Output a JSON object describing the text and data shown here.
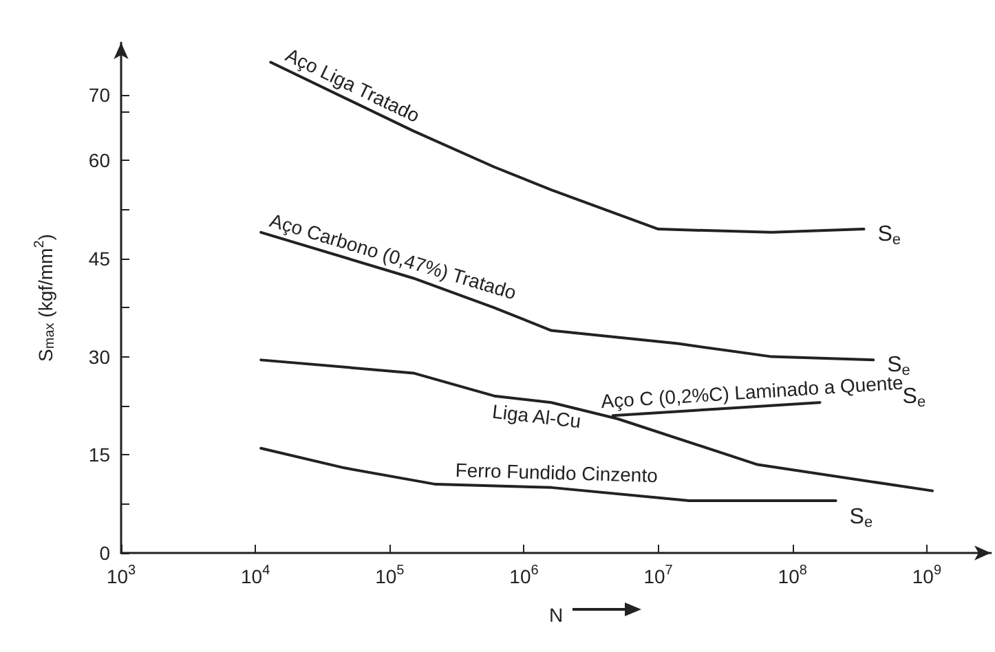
{
  "chart_data": {
    "type": "line",
    "xlabel": "N",
    "ylabel": "S$_{max}$ (kgf/mm$^{2}$)",
    "log": "x",
    "xlim": [
      1000,
      3000000000
    ],
    "ylim": [
      0,
      78
    ],
    "xticks": [
      {
        "value": 1000,
        "label": "10$^{3}$"
      },
      {
        "value": 10000,
        "label": "10$^{4}$"
      },
      {
        "value": 100000,
        "label": "10$^{5}$"
      },
      {
        "value": 1000000,
        "label": "10$^{6}$"
      },
      {
        "value": 10000000,
        "label": "10$^{7}$"
      },
      {
        "value": 100000000,
        "label": "10$^{8}$"
      },
      {
        "value": 1000000000,
        "label": "10$^{9}$"
      }
    ],
    "yticks": [
      0,
      {
        "value": 7.5,
        "label": null
      },
      15,
      {
        "value": 22.5,
        "label": null
      },
      30,
      {
        "value": 37.5,
        "label": null
      },
      45,
      {
        "value": 52.5,
        "label": null
      },
      60,
      {
        "value": 67.5,
        "label": null
      },
      70
    ],
    "grid": false,
    "legend": false,
    "marker": "none",
    "line_style": "solid",
    "series": [
      {
        "name": "Aço Liga Tratado",
        "color": "#222222",
        "x": [
          13000,
          150000,
          600000,
          1600000,
          10000000,
          70000000,
          340000000
        ],
        "values": [
          75,
          64.5,
          59,
          55.5,
          49.5,
          49,
          49.5
        ]
      },
      {
        "name": "Aço Carbono (0,47%) Tratado",
        "color": "#222222",
        "x": [
          11000,
          150000,
          600000,
          1600000,
          14000000,
          70000000,
          400000000
        ],
        "values": [
          49,
          42,
          37.5,
          34,
          32,
          30,
          29.5
        ]
      },
      {
        "name": "Liga Al-Cu",
        "color": "#222222",
        "x": [
          11000,
          150000,
          600000,
          1600000,
          5000000,
          55000000,
          1100000000
        ],
        "values": [
          29.5,
          27.5,
          24,
          23,
          20.5,
          13.5,
          9.5
        ]
      },
      {
        "name": "Aço C (0,2%C) Laminado a Quente",
        "color": "#222222",
        "x": [
          4600000,
          27000000,
          160000000
        ],
        "values": [
          21,
          22,
          23
        ]
      },
      {
        "name": "Ferro Fundido Cinzento",
        "color": "#222222",
        "x": [
          11000,
          46000,
          220000,
          1600000,
          17000000,
          210000000
        ],
        "values": [
          16,
          13,
          10.5,
          10,
          8,
          8
        ]
      }
    ],
    "annotations": [
      "S$_{e}$",
      "S$_{e}$",
      "S$_{e}$",
      "S$_{e}$"
    ]
  }
}
